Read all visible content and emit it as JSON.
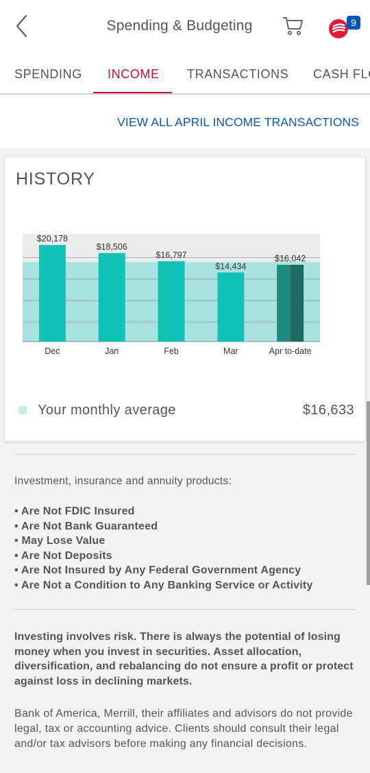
{
  "header": {
    "title": "Spending & Budgeting",
    "badge_count": "9"
  },
  "tabs": [
    {
      "label": "SPENDING",
      "active": false
    },
    {
      "label": "INCOME",
      "active": true
    },
    {
      "label": "TRANSACTIONS",
      "active": false
    },
    {
      "label": "CASH FLOW",
      "active": false
    }
  ],
  "view_all_link": "VIEW ALL APRIL INCOME TRANSACTIONS",
  "history": {
    "title": "HISTORY",
    "legend_label": "Your monthly average",
    "legend_value": "$16,633"
  },
  "chart_data": {
    "type": "bar",
    "categories": [
      "Dec",
      "Jan",
      "Feb",
      "Mar",
      "Apr to-date"
    ],
    "values": [
      20178,
      18506,
      16797,
      14434,
      16042
    ],
    "value_labels": [
      "$20,178",
      "$18,506",
      "$16,797",
      "$14,434",
      "$16,042"
    ],
    "average": 16633,
    "ylim": [
      0,
      22500
    ],
    "grid": true,
    "colors": {
      "bar": "#12c2b5",
      "current_bar": "#1e8a7f",
      "current_bar_dark": "#1f6a61",
      "average_band": "#a9e3df",
      "plot_bg": "#ececec"
    }
  },
  "disclosures": {
    "heading": "Investment, insurance and annuity products:",
    "items": [
      "Are Not FDIC Insured",
      "Are Not Bank Guaranteed",
      "May Lose Value",
      "Are Not Deposits",
      "Are Not Insured by Any Federal Government Agency",
      "Are Not a Condition to Any Banking Service or Activity"
    ],
    "risk_text": "Investing involves risk. There is always the potential of losing money when you invest in securities. Asset allocation, diversification, and rebalancing do not ensure a profit or protect against loss in declining markets.",
    "advice_text": "Bank of America, Merrill, their affiliates and advisors do not provide legal, tax or accounting advice. Clients should consult their legal and/or tax advisors before making any financial decisions."
  },
  "icons": {
    "back": "chevron-left-icon",
    "cart": "cart-icon",
    "alerts": "bank-logo-icon"
  }
}
